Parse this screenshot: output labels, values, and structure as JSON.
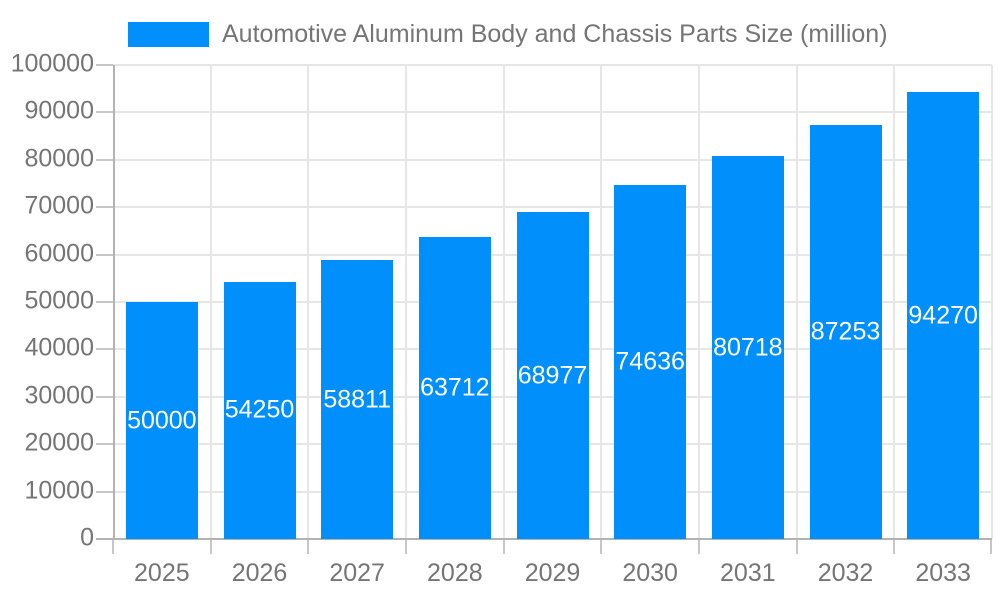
{
  "chart_data": {
    "type": "bar",
    "title": "Automotive Aluminum Body and Chassis Parts Size (million)",
    "categories": [
      "2025",
      "2026",
      "2027",
      "2028",
      "2029",
      "2030",
      "2031",
      "2032",
      "2033"
    ],
    "series": [
      {
        "name": "Automotive Aluminum Body and Chassis Parts Size (million)",
        "values": [
          50000,
          54250,
          58811,
          63712,
          68977,
          74636,
          80718,
          87253,
          94270
        ]
      }
    ],
    "value_labels_shown": true,
    "xlabel": "",
    "ylabel": "",
    "ylim": [
      0,
      100000
    ],
    "y_ticks": [
      0,
      10000,
      20000,
      30000,
      40000,
      50000,
      60000,
      70000,
      80000,
      90000,
      100000
    ],
    "grid": true,
    "legend_position": "top-left",
    "colors": {
      "bar": "#008FFB",
      "value_label": "#FFFFFF",
      "axis_text": "#757575",
      "grid": "#E6E6E6",
      "axis_line": "#B3B3B3",
      "tick": "#C7C7C7"
    }
  }
}
